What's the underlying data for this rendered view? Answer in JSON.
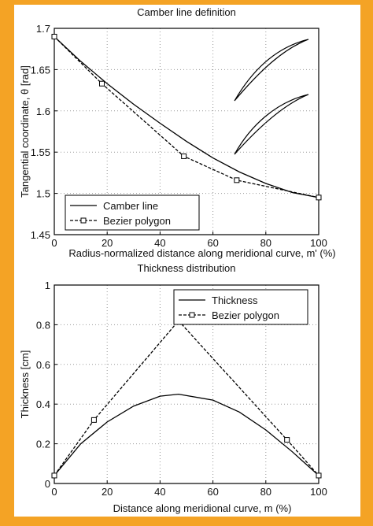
{
  "chart_data": [
    {
      "type": "line",
      "title": "Camber line definition",
      "xlabel": "Radius-normalized distance along meridional curve, m' (%)",
      "ylabel": "Tangential coordinate, θ [rad]",
      "xlim": [
        0,
        100
      ],
      "xticks": [
        0,
        20,
        40,
        60,
        80,
        100
      ],
      "ylim": [
        1.45,
        1.7
      ],
      "yticks": [
        1.45,
        1.5,
        1.55,
        1.6,
        1.65,
        1.7
      ],
      "grid": true,
      "legend": "lower left",
      "series": [
        {
          "name": "Camber line",
          "color": "#000000",
          "marker": "none",
          "dash": false,
          "x": [
            0,
            10,
            20,
            30,
            40,
            50,
            60,
            70,
            80,
            90,
            100
          ],
          "values": [
            1.69,
            1.66,
            1.633,
            1.608,
            1.585,
            1.563,
            1.543,
            1.526,
            1.512,
            1.501,
            1.495
          ]
        },
        {
          "name": "Bezier polygon",
          "color": "#000000",
          "marker": "square",
          "dash": true,
          "x": [
            0,
            18,
            49,
            69,
            100
          ],
          "values": [
            1.69,
            1.633,
            1.545,
            1.516,
            1.495
          ]
        }
      ]
    },
    {
      "type": "line",
      "title": "Thickness distribution",
      "xlabel": "Distance along meridional curve, m (%)",
      "ylabel": "Thickness [cm]",
      "xlim": [
        0,
        100
      ],
      "xticks": [
        0,
        20,
        40,
        60,
        80,
        100
      ],
      "ylim": [
        0,
        1
      ],
      "yticks": [
        0,
        0.2,
        0.4,
        0.6,
        0.8,
        1
      ],
      "grid": true,
      "legend": "upper right",
      "series": [
        {
          "name": "Thickness",
          "color": "#000000",
          "marker": "none",
          "dash": false,
          "x": [
            0,
            10,
            20,
            30,
            40,
            47,
            60,
            70,
            80,
            90,
            100
          ],
          "values": [
            0.04,
            0.2,
            0.31,
            0.39,
            0.44,
            0.45,
            0.42,
            0.36,
            0.27,
            0.16,
            0.04
          ]
        },
        {
          "name": "Bezier polygon",
          "color": "#000000",
          "marker": "square",
          "dash": true,
          "x": [
            0,
            15,
            47,
            88,
            100
          ],
          "values": [
            0.04,
            0.32,
            0.82,
            0.22,
            0.04
          ]
        }
      ]
    }
  ]
}
